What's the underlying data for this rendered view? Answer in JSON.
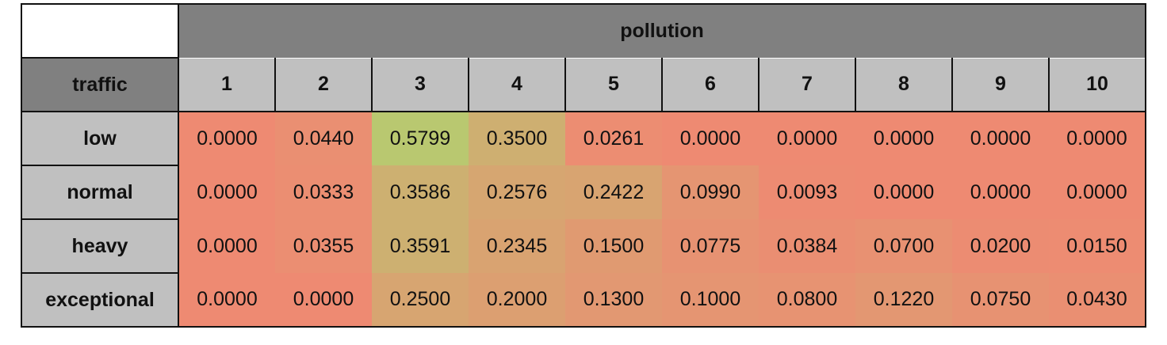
{
  "chart_data": {
    "type": "heatmap",
    "col_header": "pollution",
    "row_header": "traffic",
    "columns": [
      "1",
      "2",
      "3",
      "4",
      "5",
      "6",
      "7",
      "8",
      "9",
      "10"
    ],
    "rows": [
      {
        "label": "low",
        "values": [
          "0.0000",
          "0.0440",
          "0.5799",
          "0.3500",
          "0.0261",
          "0.0000",
          "0.0000",
          "0.0000",
          "0.0000",
          "0.0000"
        ]
      },
      {
        "label": "normal",
        "values": [
          "0.0000",
          "0.0333",
          "0.3586",
          "0.2576",
          "0.2422",
          "0.0990",
          "0.0093",
          "0.0000",
          "0.0000",
          "0.0000"
        ]
      },
      {
        "label": "heavy",
        "values": [
          "0.0000",
          "0.0355",
          "0.3591",
          "0.2345",
          "0.1500",
          "0.0775",
          "0.0384",
          "0.0700",
          "0.0200",
          "0.0150"
        ]
      },
      {
        "label": "exceptional",
        "values": [
          "0.0000",
          "0.0000",
          "0.2500",
          "0.2000",
          "0.1300",
          "0.1000",
          "0.0800",
          "0.1220",
          "0.0750",
          "0.0430"
        ]
      }
    ],
    "color_scale": {
      "low": "#ee8a72",
      "high": "#b9c870"
    }
  }
}
